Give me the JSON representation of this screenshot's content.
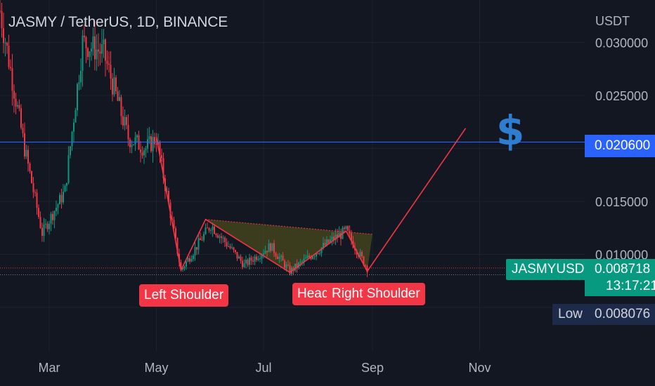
{
  "header": {
    "title": "JASMY / TetherUS, 1D, BINANCE"
  },
  "chart_data": {
    "type": "candlestick",
    "title": "JASMY / TetherUS, 1D, BINANCE",
    "y_unit": "USDT",
    "y_ticks": [
      "0.030000",
      "0.025000",
      "0.020000",
      "0.015000",
      "0.010000"
    ],
    "x_ticks": [
      "Mar",
      "May",
      "Jul",
      "Sep",
      "Nov"
    ],
    "ylim": [
      0.0045,
      0.0335
    ],
    "grid": true,
    "horizontal_line": {
      "value": 0.0206,
      "label": "0.020600",
      "color": "#2962ff"
    },
    "last_price": {
      "symbol": "JASMYUSDT",
      "value": "0.008718",
      "countdown": "13:17:21"
    },
    "low": {
      "label": "Low",
      "value": "0.008076"
    },
    "pattern_labels": [
      "Left Shoulder",
      "Head",
      "Right Shoulder"
    ],
    "annotation_icon": "dollar-icon",
    "pattern": {
      "name": "Head and Shoulders",
      "points": [
        {
          "date": "2022-05-01",
          "value": 0.0211
        },
        {
          "date": "2022-05-15",
          "value": 0.0085
        },
        {
          "date": "2022-05-29",
          "value": 0.0133
        },
        {
          "date": "2022-07-16",
          "value": 0.0083
        },
        {
          "date": "2022-08-17",
          "value": 0.0122
        },
        {
          "date": "2022-08-29",
          "value": 0.0084
        },
        {
          "date": "2022-10-24",
          "value": 0.0219
        }
      ],
      "neckline": [
        {
          "date": "2022-05-29",
          "value": 0.0133
        },
        {
          "date": "2022-09-01",
          "value": 0.0119
        }
      ]
    },
    "candle_trend": [
      {
        "date": "2022-02-01",
        "value": 0.033
      },
      {
        "date": "2022-02-15",
        "value": 0.02
      },
      {
        "date": "2022-02-25",
        "value": 0.012
      },
      {
        "date": "2022-03-10",
        "value": 0.016
      },
      {
        "date": "2022-03-20",
        "value": 0.03
      },
      {
        "date": "2022-04-01",
        "value": 0.029
      },
      {
        "date": "2022-04-15",
        "value": 0.021
      },
      {
        "date": "2022-04-25",
        "value": 0.02
      },
      {
        "date": "2022-05-01",
        "value": 0.021
      },
      {
        "date": "2022-05-15",
        "value": 0.0085
      },
      {
        "date": "2022-06-01",
        "value": 0.0128
      },
      {
        "date": "2022-06-20",
        "value": 0.009
      },
      {
        "date": "2022-07-05",
        "value": 0.0108
      },
      {
        "date": "2022-07-16",
        "value": 0.0084
      },
      {
        "date": "2022-08-10",
        "value": 0.0115
      },
      {
        "date": "2022-08-17",
        "value": 0.0122
      },
      {
        "date": "2022-08-29",
        "value": 0.0087
      }
    ],
    "colors": {
      "up": "#089981",
      "down": "#f23645",
      "pattern": "#f23645",
      "fill": "#4a4a1e"
    }
  }
}
